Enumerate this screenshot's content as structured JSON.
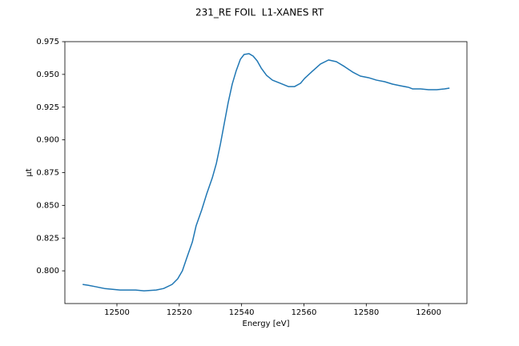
{
  "chart_data": {
    "type": "line",
    "title": "231_RE FOIL  L1-XANES RT",
    "x_label": "Energy [eV]",
    "y_label": "μt",
    "x": [
      12489,
      12490.7,
      12493.3,
      12496,
      12501,
      12506,
      12508.7,
      12512.6,
      12515,
      12517.7,
      12519.5,
      12521,
      12522.4,
      12524.2,
      12525.4,
      12527.2,
      12528.8,
      12530.6,
      12531.9,
      12533.2,
      12534.4,
      12535.7,
      12537,
      12538.3,
      12539.6,
      12540.8,
      12542.4,
      12543.7,
      12545,
      12546.3,
      12548,
      12549.9,
      12552.4,
      12555,
      12557,
      12558.9,
      12560.2,
      12562.7,
      12565.3,
      12567.9,
      12570.4,
      12573,
      12575.6,
      12578.1,
      12580.7,
      12583.3,
      12585.9,
      12588.4,
      12591,
      12593.6,
      12594.9,
      12597.4,
      12600,
      12602.6,
      12605.1,
      12606.7
    ],
    "series": [
      {
        "name": "μt",
        "color": "#1f77b4",
        "values": [
          0.7896,
          0.789,
          0.7878,
          0.7865,
          0.7853,
          0.7853,
          0.7847,
          0.7853,
          0.7865,
          0.7896,
          0.7939,
          0.8,
          0.8098,
          0.822,
          0.8343,
          0.8465,
          0.8587,
          0.871,
          0.882,
          0.8967,
          0.912,
          0.9285,
          0.9426,
          0.953,
          0.9615,
          0.9652,
          0.9658,
          0.964,
          0.9603,
          0.9548,
          0.9493,
          0.9456,
          0.9432,
          0.9407,
          0.9407,
          0.9432,
          0.9469,
          0.9524,
          0.9579,
          0.961,
          0.9597,
          0.956,
          0.9518,
          0.9487,
          0.9475,
          0.9456,
          0.9444,
          0.9426,
          0.9413,
          0.9401,
          0.9389,
          0.9389,
          0.9383,
          0.9383,
          0.9389,
          0.9395
        ]
      }
    ],
    "xlim": [
      12483.3,
      12612.3
    ],
    "ylim": [
      0.775,
      0.975
    ],
    "xticks": [
      12500,
      12520,
      12540,
      12560,
      12580,
      12600
    ],
    "yticks": [
      {
        "value": 0.8,
        "label": "0.800"
      },
      {
        "value": 0.825,
        "label": "0.825"
      },
      {
        "value": 0.85,
        "label": "0.850"
      },
      {
        "value": 0.875,
        "label": "0.875"
      },
      {
        "value": 0.9,
        "label": "0.900"
      },
      {
        "value": 0.925,
        "label": "0.925"
      },
      {
        "value": 0.95,
        "label": "0.950"
      },
      {
        "value": 0.975,
        "label": "0.975"
      }
    ],
    "grid": false
  }
}
